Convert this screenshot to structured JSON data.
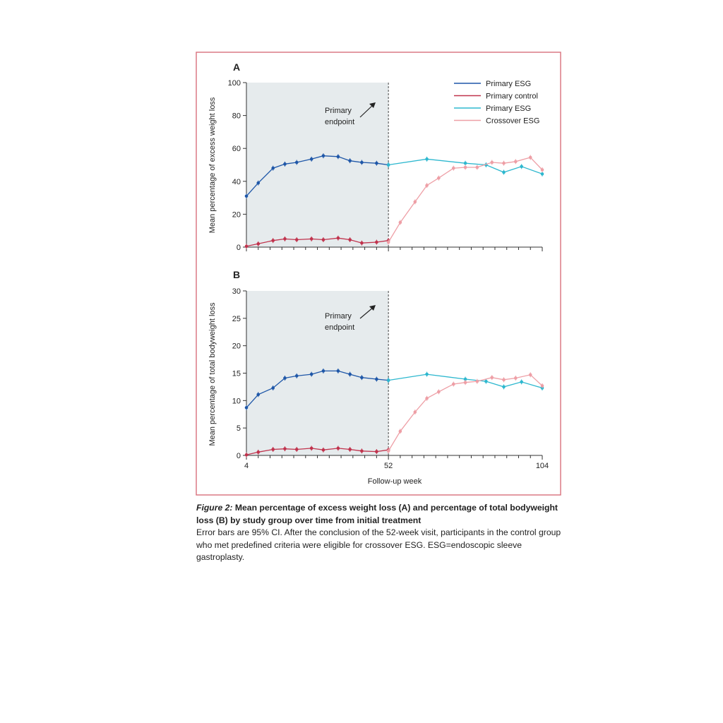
{
  "chart_data": [
    {
      "type": "line",
      "panel": "A",
      "ylabel": "Mean percentage of excess weight loss",
      "ylim": [
        0,
        100
      ],
      "yticks": [
        "0",
        "20",
        "40",
        "60",
        "80",
        "100"
      ],
      "annotation": [
        "Primary",
        "endpoint"
      ],
      "series": [
        {
          "name": "Primary ESG",
          "x": [
            4,
            8,
            13,
            17,
            21,
            26,
            30,
            35,
            39,
            43,
            48,
            52
          ],
          "y": [
            31,
            39,
            48,
            50.5,
            51.5,
            53.5,
            55.5,
            55,
            52.5,
            51.5,
            51,
            50
          ],
          "color": "#1f57a8"
        },
        {
          "name": "Primary control",
          "x": [
            4,
            8,
            13,
            17,
            21,
            26,
            30,
            35,
            39,
            43,
            48,
            52
          ],
          "y": [
            0.5,
            2,
            4,
            5,
            4.5,
            5,
            4.5,
            5.5,
            4.5,
            2.5,
            3,
            4
          ],
          "color": "#c0334d"
        },
        {
          "name": "Primary ESG",
          "x": [
            52,
            65,
            78,
            85,
            91,
            97,
            104
          ],
          "y": [
            50,
            53.5,
            51,
            50,
            45.5,
            49,
            44.5
          ],
          "color": "#2eb8cf"
        },
        {
          "name": "Crossover ESG",
          "x": [
            52,
            56,
            61,
            65,
            69,
            74,
            78,
            82,
            87,
            91,
            95,
            100,
            104
          ],
          "y": [
            3,
            15,
            27.5,
            37.5,
            42,
            48,
            48.5,
            48.5,
            51.5,
            51,
            52,
            54.5,
            47
          ],
          "color": "#ee9fa6"
        }
      ]
    },
    {
      "type": "line",
      "panel": "B",
      "ylabel": "Mean percentage of total bodyweight loss",
      "xlabel": "Follow-up week",
      "ylim": [
        0,
        30
      ],
      "yticks": [
        "0",
        "5",
        "10",
        "15",
        "20",
        "25",
        "30"
      ],
      "xticks": [
        "4",
        "52",
        "104"
      ],
      "annotation": [
        "Primary",
        "endpoint"
      ],
      "series": [
        {
          "name": "Primary ESG",
          "x": [
            4,
            8,
            13,
            17,
            21,
            26,
            30,
            35,
            39,
            43,
            48,
            52
          ],
          "y": [
            8.7,
            11.1,
            12.3,
            14.1,
            14.5,
            14.8,
            15.4,
            15.4,
            14.8,
            14.2,
            13.9,
            13.7
          ],
          "color": "#1f57a8"
        },
        {
          "name": "Primary control",
          "x": [
            4,
            8,
            13,
            17,
            21,
            26,
            30,
            35,
            39,
            43,
            48,
            52
          ],
          "y": [
            0.1,
            0.6,
            1.1,
            1.2,
            1.1,
            1.3,
            1.0,
            1.3,
            1.1,
            0.8,
            0.7,
            1.0
          ],
          "color": "#c0334d"
        },
        {
          "name": "Primary ESG",
          "x": [
            52,
            65,
            78,
            85,
            91,
            97,
            104
          ],
          "y": [
            13.7,
            14.8,
            13.9,
            13.5,
            12.5,
            13.4,
            12.3
          ],
          "color": "#2eb8cf"
        },
        {
          "name": "Crossover ESG",
          "x": [
            52,
            56,
            61,
            65,
            69,
            74,
            78,
            82,
            87,
            91,
            95,
            100,
            104
          ],
          "y": [
            0.8,
            4.4,
            7.9,
            10.4,
            11.6,
            13.0,
            13.3,
            13.5,
            14.2,
            13.8,
            14.1,
            14.7,
            12.7
          ],
          "color": "#ee9fa6"
        }
      ]
    }
  ],
  "legend": [
    {
      "label": "Primary ESG",
      "color": "#1f57a8"
    },
    {
      "label": "Primary control",
      "color": "#c0334d"
    },
    {
      "label": "Primary ESG",
      "color": "#2eb8cf"
    },
    {
      "label": "Crossover ESG",
      "color": "#ee9fa6"
    }
  ],
  "caption": {
    "figure_label": "Figure 2:",
    "title": " Mean percentage of excess weight loss (A) and percentage of total bodyweight loss (B) by study group over time from initial treatment",
    "body": "Error bars are 95% CI. After the conclusion of the 52-week visit, participants in the control group who met predefined criteria were eligible for crossover ESG. ESG=endoscopic sleeve gastroplasty."
  },
  "colors": {
    "frame": "#d9707c",
    "shade": "#e6ebed",
    "axis": "#333333"
  }
}
